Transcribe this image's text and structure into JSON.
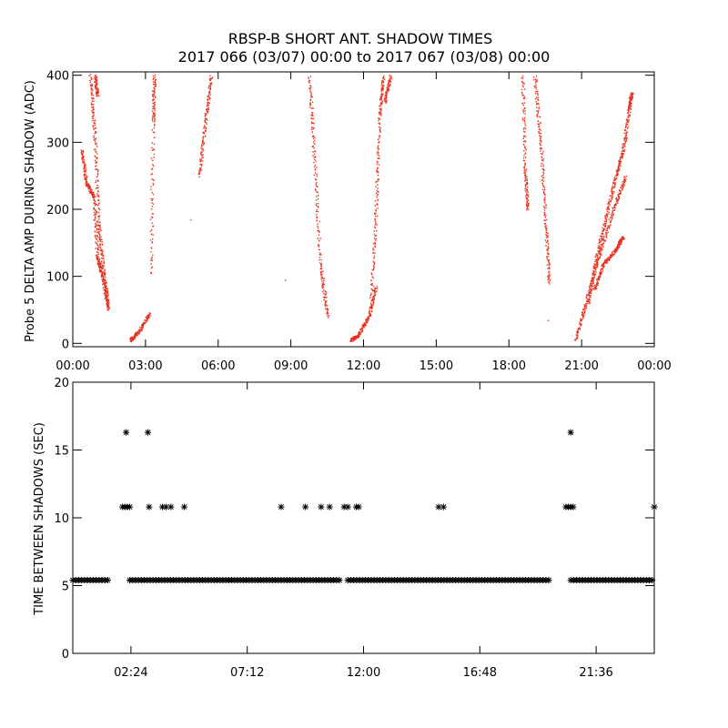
{
  "title": {
    "line1": "RBSP-B SHORT ANT. SHADOW TIMES",
    "line2": "2017 066 (03/07) 00:00 to 2017 067 (03/08) 00:00"
  },
  "colors": {
    "amp_points": "#e8321e",
    "interval_points": "#000000",
    "axes": "#000000",
    "background": "#ffffff"
  },
  "chart_data": [
    {
      "type": "scatter",
      "name": "shadow-amplitude",
      "ylabel": "Probe 5 DELTA AMP DURING SHADOW (ADC)",
      "xlabel": "",
      "xlim": [
        0,
        24
      ],
      "ylim": [
        -5,
        405
      ],
      "x_unit": "hours",
      "x_ticks": [
        0,
        3,
        6,
        9,
        12,
        15,
        18,
        21,
        24
      ],
      "x_tick_labels": [
        "00:00",
        "03:00",
        "06:00",
        "09:00",
        "12:00",
        "15:00",
        "18:00",
        "21:00",
        "00:00"
      ],
      "y_ticks": [
        0,
        100,
        200,
        300,
        400
      ],
      "y_tick_labels": [
        "0",
        "100",
        "200",
        "300",
        "400"
      ],
      "grid": false,
      "marker": "dot",
      "color": "#e8321e",
      "segments": [
        [
          [
            0.35,
            290
          ],
          [
            0.55,
            240
          ],
          [
            0.85,
            220
          ],
          [
            1.0,
            130
          ],
          [
            1.2,
            100
          ],
          [
            1.45,
            50
          ]
        ],
        [
          [
            0.7,
            400
          ],
          [
            0.9,
            310
          ],
          [
            1.05,
            180
          ],
          [
            1.25,
            110
          ],
          [
            1.45,
            55
          ]
        ],
        [
          [
            0.9,
            400
          ],
          [
            1.0,
            370
          ]
        ],
        [
          [
            2.35,
            5
          ],
          [
            2.7,
            18
          ],
          [
            3.15,
            45
          ]
        ],
        [
          [
            3.2,
            100
          ],
          [
            3.3,
            330
          ],
          [
            3.35,
            400
          ]
        ],
        [
          [
            5.2,
            250
          ],
          [
            5.45,
            330
          ],
          [
            5.7,
            400
          ]
        ],
        [
          [
            9.75,
            400
          ],
          [
            9.95,
            280
          ],
          [
            10.2,
            120
          ],
          [
            10.5,
            40
          ]
        ],
        [
          [
            11.45,
            5
          ],
          [
            11.75,
            12
          ],
          [
            12.2,
            40
          ],
          [
            12.5,
            85
          ]
        ],
        [
          [
            12.3,
            65
          ],
          [
            12.5,
            200
          ],
          [
            12.65,
            340
          ],
          [
            12.8,
            400
          ]
        ],
        [
          [
            12.85,
            360
          ],
          [
            13.1,
            400
          ]
        ],
        [
          [
            18.55,
            400
          ],
          [
            18.65,
            260
          ],
          [
            18.75,
            200
          ]
        ],
        [
          [
            19.05,
            400
          ],
          [
            19.3,
            300
          ],
          [
            19.5,
            180
          ],
          [
            19.65,
            90
          ]
        ],
        [
          [
            20.75,
            5
          ],
          [
            21.15,
            60
          ],
          [
            21.7,
            130
          ],
          [
            22.3,
            200
          ],
          [
            22.8,
            250
          ]
        ],
        [
          [
            21.25,
            60
          ],
          [
            21.6,
            130
          ],
          [
            22.0,
            190
          ],
          [
            22.4,
            250
          ],
          [
            22.7,
            290
          ],
          [
            22.95,
            350
          ],
          [
            23.05,
            375
          ]
        ],
        [
          [
            21.5,
            80
          ],
          [
            21.9,
            120
          ],
          [
            22.4,
            140
          ],
          [
            22.7,
            160
          ]
        ]
      ],
      "isolated_points": [
        [
          4.85,
          185
        ],
        [
          8.75,
          95
        ],
        [
          19.6,
          35
        ]
      ]
    },
    {
      "type": "scatter",
      "name": "time-between-shadows",
      "ylabel": "TIME BETWEEN SHADOWS (SEC)",
      "xlabel": "",
      "xlim": [
        0,
        24
      ],
      "ylim": [
        0,
        20
      ],
      "x_unit": "hours",
      "x_ticks": [
        2.4,
        7.2,
        12.0,
        16.8,
        21.6
      ],
      "x_tick_labels": [
        "02:24",
        "07:12",
        "12:00",
        "16:48",
        "21:36"
      ],
      "y_ticks": [
        0,
        5,
        10,
        15,
        20
      ],
      "y_tick_labels": [
        "0",
        "5",
        "10",
        "15",
        "20"
      ],
      "grid": false,
      "marker": "asterisk",
      "color": "#000000",
      "baseline": {
        "value": 5.4,
        "ranges": [
          [
            0.0,
            1.55
          ],
          [
            2.35,
            11.05
          ],
          [
            11.35,
            19.7
          ],
          [
            20.55,
            24.0
          ]
        ]
      },
      "points": [
        [
          2.2,
          16.3
        ],
        [
          3.1,
          16.3
        ],
        [
          20.55,
          16.3
        ],
        [
          2.05,
          10.8
        ],
        [
          2.15,
          10.8
        ],
        [
          2.25,
          10.8
        ],
        [
          2.35,
          10.8
        ],
        [
          3.15,
          10.8
        ],
        [
          3.7,
          10.8
        ],
        [
          3.85,
          10.8
        ],
        [
          4.05,
          10.8
        ],
        [
          4.6,
          10.8
        ],
        [
          8.6,
          10.8
        ],
        [
          9.6,
          10.8
        ],
        [
          10.25,
          10.8
        ],
        [
          10.6,
          10.8
        ],
        [
          11.2,
          10.8
        ],
        [
          11.35,
          10.8
        ],
        [
          11.7,
          10.8
        ],
        [
          11.8,
          10.8
        ],
        [
          15.1,
          10.8
        ],
        [
          15.3,
          10.8
        ],
        [
          20.35,
          10.8
        ],
        [
          20.45,
          10.8
        ],
        [
          20.55,
          10.8
        ],
        [
          20.65,
          10.8
        ],
        [
          24.0,
          10.8
        ]
      ]
    }
  ]
}
